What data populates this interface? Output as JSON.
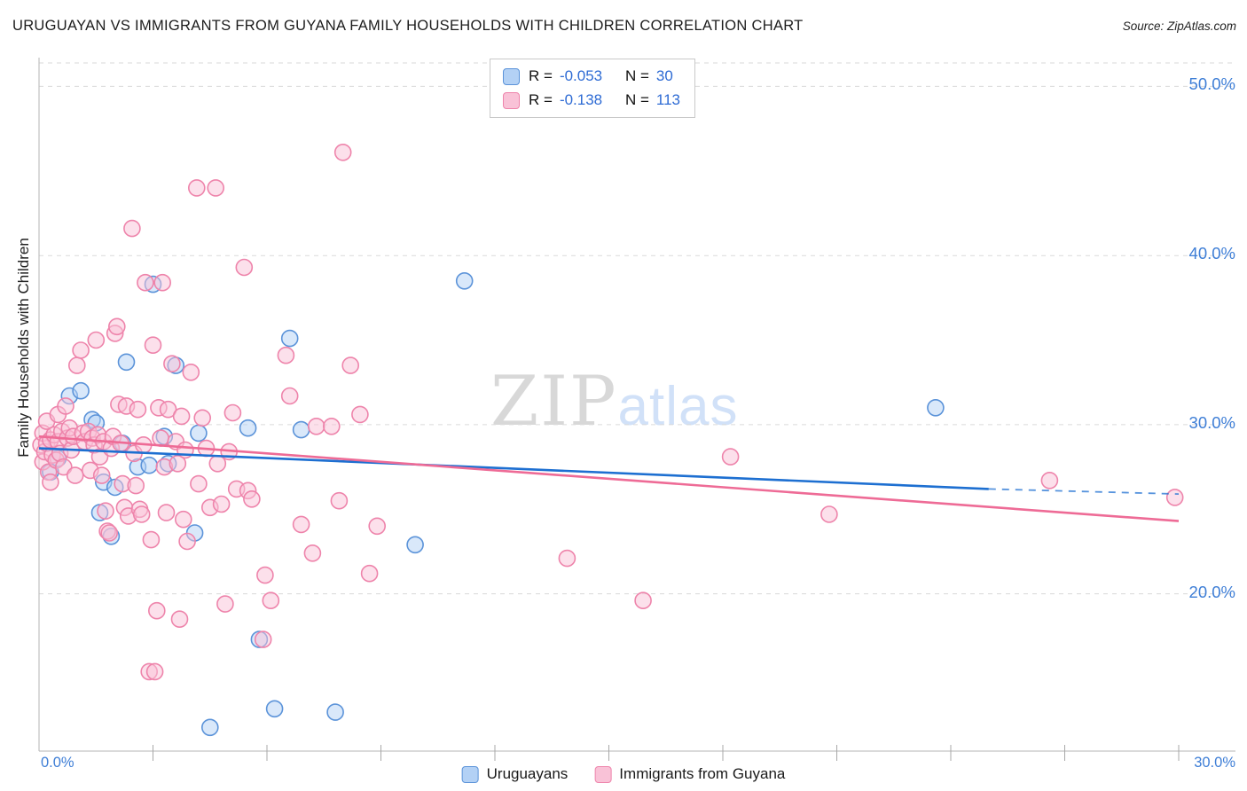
{
  "header": {
    "title": "URUGUAYAN VS IMMIGRANTS FROM GUYANA FAMILY HOUSEHOLDS WITH CHILDREN CORRELATION CHART",
    "source": "Source: ZipAtlas.com"
  },
  "watermark": {
    "part1": "ZIP",
    "part2": "atlas"
  },
  "axes": {
    "y_label": "Family Households with Children",
    "y_ticks": [
      {
        "value": 50,
        "label": "50.0%"
      },
      {
        "value": 40,
        "label": "40.0%"
      },
      {
        "value": 30,
        "label": "30.0%"
      },
      {
        "value": 20,
        "label": "20.0%"
      }
    ],
    "x_ticks": [
      {
        "value": 0,
        "label": "0.0%"
      },
      {
        "value": 30,
        "label": "30.0%"
      }
    ]
  },
  "stats_box": {
    "rows": [
      {
        "series": "Uruguayans",
        "r_label": "R =",
        "r_value": "-0.053",
        "n_label": "N =",
        "n_value": "30"
      },
      {
        "series": "Immigrants from Guyana",
        "r_label": "R =",
        "r_value": "-0.138",
        "n_label": "N =",
        "n_value": "113"
      }
    ]
  },
  "legend": {
    "items": [
      {
        "label": "Uruguayans"
      },
      {
        "label": "Immigrants from Guyana"
      }
    ]
  },
  "chart_data": {
    "type": "scatter",
    "title": "URUGUAYAN VS IMMIGRANTS FROM GUYANA FAMILY HOUSEHOLDS WITH CHILDREN CORRELATION CHART",
    "xlabel": "",
    "ylabel": "Family Households with Children",
    "xlim": [
      0,
      30
    ],
    "ylim": [
      10.7,
      51.7
    ],
    "x_gridline_values": [
      3,
      6,
      9,
      12,
      15,
      18,
      21,
      24,
      27,
      30
    ],
    "y_gridline_values": [
      20,
      30,
      40,
      50
    ],
    "grid": "horizontal-dashed",
    "legend_position": "bottom-center",
    "series": [
      {
        "name": "Uruguayans",
        "R": -0.053,
        "N": 30,
        "fill": "#b3d1f5",
        "stroke": "#5b93d9",
        "points": [
          [
            0.3,
            27.2
          ],
          [
            0.5,
            28.0
          ],
          [
            0.8,
            31.7
          ],
          [
            1.1,
            32.0
          ],
          [
            1.4,
            30.3
          ],
          [
            1.5,
            30.1
          ],
          [
            1.6,
            24.8
          ],
          [
            1.7,
            26.6
          ],
          [
            1.9,
            23.4
          ],
          [
            2.0,
            26.3
          ],
          [
            2.2,
            28.9
          ],
          [
            2.3,
            33.7
          ],
          [
            2.6,
            27.5
          ],
          [
            2.9,
            27.6
          ],
          [
            3.0,
            38.3
          ],
          [
            3.3,
            29.3
          ],
          [
            3.4,
            27.7
          ],
          [
            3.6,
            33.5
          ],
          [
            4.1,
            23.6
          ],
          [
            4.2,
            29.5
          ],
          [
            4.5,
            12.1
          ],
          [
            5.5,
            29.8
          ],
          [
            5.8,
            17.3
          ],
          [
            6.2,
            13.2
          ],
          [
            6.6,
            35.1
          ],
          [
            6.9,
            29.7
          ],
          [
            7.8,
            13.0
          ],
          [
            9.9,
            22.9
          ],
          [
            11.2,
            38.5
          ],
          [
            23.6,
            31.0
          ]
        ]
      },
      {
        "name": "Immigrants from Guyana",
        "R": -0.138,
        "N": 113,
        "fill": "#f9c2d7",
        "stroke": "#ee84ab",
        "points": [
          [
            0.05,
            28.8
          ],
          [
            0.1,
            29.5
          ],
          [
            0.1,
            27.8
          ],
          [
            0.15,
            28.4
          ],
          [
            0.2,
            30.2
          ],
          [
            0.2,
            28.9
          ],
          [
            0.25,
            27.2
          ],
          [
            0.3,
            29.1
          ],
          [
            0.3,
            26.6
          ],
          [
            0.35,
            28.2
          ],
          [
            0.4,
            29.4
          ],
          [
            0.45,
            27.9
          ],
          [
            0.5,
            30.6
          ],
          [
            0.5,
            29.0
          ],
          [
            0.55,
            28.3
          ],
          [
            0.6,
            29.6
          ],
          [
            0.65,
            27.5
          ],
          [
            0.7,
            31.1
          ],
          [
            0.75,
            29.2
          ],
          [
            0.8,
            29.8
          ],
          [
            0.85,
            28.5
          ],
          [
            0.9,
            29.3
          ],
          [
            0.95,
            27.0
          ],
          [
            1.0,
            33.5
          ],
          [
            1.1,
            34.4
          ],
          [
            1.15,
            29.5
          ],
          [
            1.2,
            29.0
          ],
          [
            1.3,
            29.6
          ],
          [
            1.35,
            27.3
          ],
          [
            1.4,
            29.2
          ],
          [
            1.45,
            28.8
          ],
          [
            1.5,
            35.0
          ],
          [
            1.55,
            29.4
          ],
          [
            1.6,
            28.1
          ],
          [
            1.65,
            27.0
          ],
          [
            1.7,
            29.0
          ],
          [
            1.75,
            24.9
          ],
          [
            1.8,
            23.7
          ],
          [
            1.85,
            23.6
          ],
          [
            1.9,
            28.6
          ],
          [
            1.95,
            29.3
          ],
          [
            2.0,
            35.4
          ],
          [
            2.05,
            35.8
          ],
          [
            2.1,
            31.2
          ],
          [
            2.15,
            28.9
          ],
          [
            2.2,
            26.5
          ],
          [
            2.25,
            25.1
          ],
          [
            2.3,
            31.1
          ],
          [
            2.35,
            24.6
          ],
          [
            2.45,
            41.6
          ],
          [
            2.5,
            28.3
          ],
          [
            2.55,
            26.4
          ],
          [
            2.6,
            30.9
          ],
          [
            2.65,
            25.0
          ],
          [
            2.7,
            24.7
          ],
          [
            2.75,
            28.8
          ],
          [
            2.8,
            38.4
          ],
          [
            2.9,
            15.4
          ],
          [
            2.95,
            23.2
          ],
          [
            3.0,
            34.7
          ],
          [
            3.05,
            15.4
          ],
          [
            3.1,
            19.0
          ],
          [
            3.15,
            31.0
          ],
          [
            3.2,
            29.2
          ],
          [
            3.25,
            38.4
          ],
          [
            3.3,
            27.5
          ],
          [
            3.35,
            24.8
          ],
          [
            3.4,
            30.9
          ],
          [
            3.5,
            33.6
          ],
          [
            3.6,
            29.0
          ],
          [
            3.65,
            27.7
          ],
          [
            3.7,
            18.5
          ],
          [
            3.75,
            30.5
          ],
          [
            3.8,
            24.4
          ],
          [
            3.85,
            28.5
          ],
          [
            3.9,
            23.1
          ],
          [
            4.0,
            33.1
          ],
          [
            4.15,
            44.0
          ],
          [
            4.2,
            26.5
          ],
          [
            4.3,
            30.4
          ],
          [
            4.4,
            28.6
          ],
          [
            4.5,
            25.1
          ],
          [
            4.65,
            44.0
          ],
          [
            4.7,
            27.7
          ],
          [
            4.8,
            25.3
          ],
          [
            4.9,
            19.4
          ],
          [
            5.0,
            28.4
          ],
          [
            5.1,
            30.7
          ],
          [
            5.2,
            26.2
          ],
          [
            5.4,
            39.3
          ],
          [
            5.5,
            26.1
          ],
          [
            5.6,
            25.6
          ],
          [
            5.9,
            17.3
          ],
          [
            5.95,
            21.1
          ],
          [
            6.1,
            19.6
          ],
          [
            6.5,
            34.1
          ],
          [
            6.6,
            31.7
          ],
          [
            6.9,
            24.1
          ],
          [
            7.2,
            22.4
          ],
          [
            7.3,
            29.9
          ],
          [
            7.7,
            29.9
          ],
          [
            7.9,
            25.5
          ],
          [
            8.0,
            46.1
          ],
          [
            8.2,
            33.5
          ],
          [
            8.45,
            30.6
          ],
          [
            8.7,
            21.2
          ],
          [
            8.9,
            24.0
          ],
          [
            13.9,
            22.1
          ],
          [
            15.9,
            19.6
          ],
          [
            18.2,
            28.1
          ],
          [
            20.8,
            24.7
          ],
          [
            26.6,
            26.7
          ],
          [
            29.9,
            25.7
          ]
        ]
      }
    ],
    "trend_lines": [
      {
        "series": "Uruguayans",
        "color": "#1d6fd1",
        "solid": [
          [
            0,
            28.6
          ],
          [
            25,
            26.2
          ]
        ],
        "dashed": [
          [
            25,
            26.2
          ],
          [
            30,
            25.9
          ]
        ]
      },
      {
        "series": "Immigrants from Guyana",
        "color": "#ee6b96",
        "solid": [
          [
            0,
            29.3
          ],
          [
            30,
            24.3
          ]
        ],
        "dashed": null
      }
    ]
  }
}
